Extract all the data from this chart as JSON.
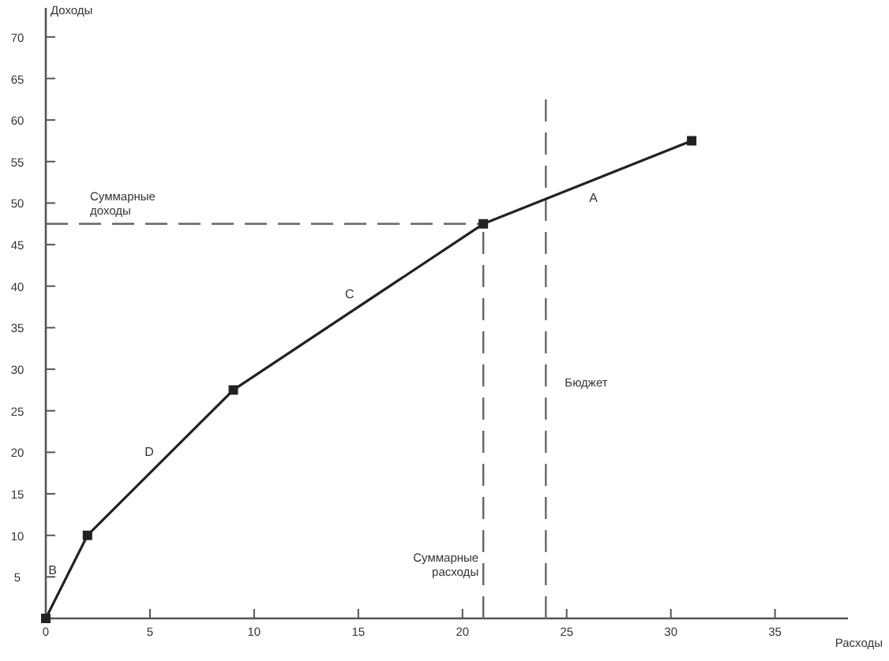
{
  "chart_data": {
    "type": "line",
    "xlabel": "Расходы",
    "ylabel": "Доходы",
    "x": [
      0,
      2,
      9,
      21,
      31
    ],
    "series": [
      {
        "color": "#222222",
        "values": [
          0,
          10,
          27.5,
          47.5,
          57.5
        ]
      }
    ],
    "marker": "square",
    "line_style": "solid",
    "grid": false,
    "xlim": [
      0,
      38.5
    ],
    "ylim": [
      0,
      73.5
    ],
    "xticks": [
      0,
      5,
      10,
      15,
      20,
      25,
      30,
      35
    ],
    "yticks": [
      {
        "value": 0,
        "label": null
      },
      5,
      10,
      15,
      20,
      25,
      30,
      35,
      40,
      45,
      50,
      55,
      60,
      65,
      70
    ],
    "ref_lines": [
      {
        "axis": "y",
        "value": 47.5,
        "label": "Суммарные доходы",
        "color": "#666666",
        "line_style": "dashed"
      },
      {
        "axis": "x",
        "value": 21,
        "label": "Суммарные расходы",
        "color": "#666666",
        "line_style": "dashed"
      },
      {
        "axis": "x",
        "value": 24,
        "label": "Бюджет",
        "color": "#666666",
        "line_style": "dashed"
      }
    ],
    "annotations": [
      "B",
      "D",
      "C",
      "A"
    ]
  }
}
